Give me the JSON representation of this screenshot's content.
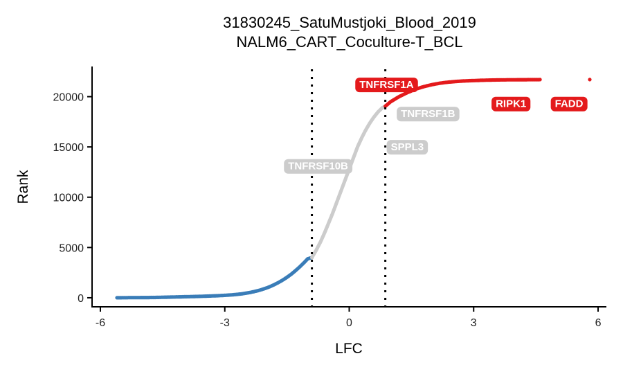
{
  "chart_data": {
    "type": "scatter",
    "title": "31830245_SatuMustjoki_Blood_2019",
    "subtitle": "NALM6_CART_Coculture-T_BCL",
    "xlabel": "LFC",
    "ylabel": "Rank",
    "xlim": [
      -6.2,
      6.2
    ],
    "ylim": [
      -900,
      23000
    ],
    "xticks": [
      -6,
      -3,
      0,
      3,
      6
    ],
    "xtick_labels": [
      "-6",
      "-3",
      "0",
      "3",
      "6"
    ],
    "yticks": [
      0,
      5000,
      10000,
      15000,
      20000
    ],
    "ytick_labels": [
      "0",
      "5000",
      "10000",
      "15000",
      "20000"
    ],
    "thresholds": [
      -0.9,
      0.87
    ],
    "grid": false,
    "legend": "none",
    "colors": {
      "low": "#3a7db8",
      "mid": "#cccccc",
      "high": "#e41a1c",
      "label_text": "#ffffff"
    },
    "curve": {
      "total_points": 21700,
      "low_x": [
        -5.6,
        -5.5,
        -5.4,
        -5.3,
        -5.0,
        -4.7,
        -4.6,
        -4.5,
        -4.4,
        -4.3,
        -4.2,
        -4.1,
        -4.0,
        -3.9,
        -3.8,
        -3.7,
        -3.6,
        -3.5,
        -3.4,
        -3.3,
        -3.2,
        -3.1,
        -3.0,
        -2.9,
        -2.8,
        -2.7,
        -2.6,
        -2.5,
        -2.4,
        -2.3,
        -2.2,
        -2.1,
        -2.0,
        -1.9,
        -1.8,
        -1.7,
        -1.6,
        -1.5,
        -1.4,
        -1.3,
        -1.2,
        -1.1,
        -1.0,
        -0.9
      ],
      "low_y": [
        0,
        5,
        10,
        15,
        20,
        30,
        40,
        50,
        60,
        70,
        80,
        90,
        100,
        110,
        120,
        130,
        140,
        155,
        170,
        185,
        200,
        220,
        245,
        270,
        300,
        340,
        390,
        450,
        520,
        610,
        710,
        830,
        970,
        1130,
        1320,
        1530,
        1770,
        2040,
        2340,
        2680,
        3050,
        3450,
        3880,
        4000
      ],
      "mid_x": [
        -0.9,
        -0.8,
        -0.7,
        -0.6,
        -0.5,
        -0.4,
        -0.3,
        -0.2,
        -0.1,
        0.0,
        0.1,
        0.2,
        0.3,
        0.4,
        0.5,
        0.6,
        0.7,
        0.8,
        0.87
      ],
      "mid_y": [
        4000,
        4700,
        5500,
        6400,
        7400,
        8400,
        9500,
        10600,
        11700,
        12800,
        13900,
        15000,
        15900,
        16700,
        17400,
        18000,
        18500,
        18900,
        19050
      ],
      "high_x": [
        0.87,
        1.0,
        1.2,
        1.4,
        1.6,
        1.8,
        2.0,
        2.2,
        2.4,
        2.6,
        2.8,
        3.0,
        3.2,
        3.4,
        3.6,
        3.8,
        4.0,
        4.1,
        4.2,
        4.4,
        4.6,
        5.8
      ],
      "high_y": [
        19050,
        19500,
        20000,
        20400,
        20750,
        21000,
        21200,
        21350,
        21450,
        21520,
        21570,
        21600,
        21630,
        21650,
        21665,
        21675,
        21680,
        21683,
        21686,
        21690,
        21695,
        21699
      ]
    },
    "labels": [
      {
        "text": "TNFRSF1A",
        "x": 0.9,
        "y": 21200,
        "color": "#e41a1c"
      },
      {
        "text": "TNFRSF1B",
        "x": 1.9,
        "y": 18300,
        "color": "#cccccc"
      },
      {
        "text": "SPPL3",
        "x": 1.4,
        "y": 15000,
        "color": "#cccccc"
      },
      {
        "text": "TNFRSF10B",
        "x": -0.75,
        "y": 13100,
        "color": "#cccccc"
      },
      {
        "text": "RIPK1",
        "x": 3.9,
        "y": 19300,
        "color": "#e41a1c"
      },
      {
        "text": "FADD",
        "x": 5.3,
        "y": 19300,
        "color": "#e41a1c"
      }
    ]
  }
}
